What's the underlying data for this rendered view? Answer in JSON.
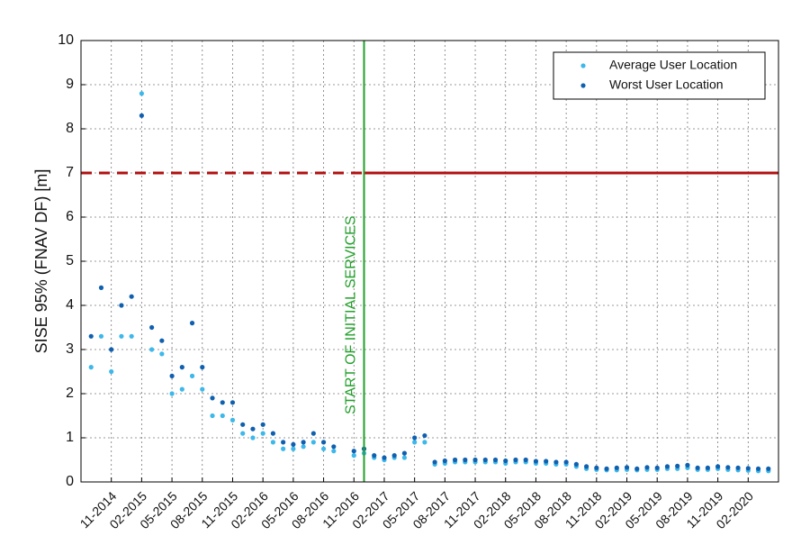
{
  "chart_data": {
    "type": "scatter",
    "ylabel": "SISE 95% (FNAV DF) [m]",
    "x": [
      "09-2014",
      "10-2014",
      "11-2014",
      "12-2014",
      "01-2015",
      "02-2015",
      "03-2015",
      "04-2015",
      "05-2015",
      "06-2015",
      "07-2015",
      "08-2015",
      "09-2015",
      "10-2015",
      "11-2015",
      "12-2015",
      "01-2016",
      "02-2016",
      "03-2016",
      "04-2016",
      "05-2016",
      "06-2016",
      "07-2016",
      "08-2016",
      "09-2016",
      "10-2016",
      "11-2016",
      "12-2016",
      "01-2017",
      "02-2017",
      "03-2017",
      "04-2017",
      "05-2017",
      "06-2017",
      "07-2017",
      "08-2017",
      "09-2017",
      "10-2017",
      "11-2017",
      "12-2017",
      "01-2018",
      "02-2018",
      "03-2018",
      "04-2018",
      "05-2018",
      "06-2018",
      "07-2018",
      "08-2018",
      "09-2018",
      "10-2018",
      "11-2018",
      "12-2018",
      "01-2019",
      "02-2019",
      "03-2019",
      "04-2019",
      "05-2019",
      "06-2019",
      "07-2019",
      "08-2019",
      "09-2019",
      "10-2019",
      "11-2019",
      "12-2019",
      "01-2020",
      "02-2020",
      "03-2020",
      "04-2020"
    ],
    "series": [
      {
        "name": "Average User Location",
        "color": "#3cb8ea",
        "values": [
          2.6,
          3.3,
          2.5,
          3.3,
          3.3,
          8.8,
          3.0,
          2.9,
          2.0,
          2.1,
          2.4,
          2.1,
          1.5,
          1.5,
          1.4,
          1.1,
          1.0,
          1.1,
          0.9,
          0.75,
          0.75,
          0.8,
          0.9,
          0.75,
          0.7,
          null,
          0.6,
          0.65,
          0.55,
          0.5,
          0.55,
          0.55,
          0.9,
          0.9,
          0.4,
          0.42,
          0.45,
          0.45,
          0.45,
          0.45,
          0.45,
          0.42,
          0.45,
          0.45,
          0.42,
          0.42,
          0.4,
          0.4,
          0.35,
          0.3,
          0.28,
          0.27,
          0.27,
          0.28,
          0.27,
          0.28,
          0.28,
          0.3,
          0.3,
          0.32,
          0.28,
          0.28,
          0.3,
          0.28,
          0.27,
          0.26,
          0.25,
          0.25
        ]
      },
      {
        "name": "Worst User Location",
        "color": "#1060b0",
        "values": [
          3.3,
          4.4,
          3.0,
          4.0,
          4.2,
          8.3,
          3.5,
          3.2,
          2.4,
          2.6,
          3.6,
          2.6,
          1.9,
          1.8,
          1.8,
          1.3,
          1.2,
          1.3,
          1.1,
          0.9,
          0.85,
          0.9,
          1.1,
          0.9,
          0.8,
          null,
          0.7,
          0.75,
          0.6,
          0.55,
          0.6,
          0.65,
          1.0,
          1.05,
          0.45,
          0.48,
          0.5,
          0.5,
          0.5,
          0.5,
          0.5,
          0.48,
          0.5,
          0.5,
          0.47,
          0.47,
          0.45,
          0.45,
          0.4,
          0.35,
          0.32,
          0.3,
          0.32,
          0.33,
          0.3,
          0.33,
          0.32,
          0.35,
          0.36,
          0.38,
          0.32,
          0.32,
          0.35,
          0.33,
          0.32,
          0.31,
          0.3,
          0.3
        ]
      }
    ],
    "xlim": [
      "08-2014",
      "05-2020"
    ],
    "xticks": [
      "11-2014",
      "02-2015",
      "05-2015",
      "08-2015",
      "11-2015",
      "02-2016",
      "05-2016",
      "08-2016",
      "11-2016",
      "02-2017",
      "05-2017",
      "08-2017",
      "11-2017",
      "02-2018",
      "05-2018",
      "08-2018",
      "11-2018",
      "02-2019",
      "05-2019",
      "08-2019",
      "11-2019",
      "02-2020"
    ],
    "ylim": [
      0,
      10
    ],
    "yticks": [
      0,
      1,
      2,
      3,
      4,
      5,
      6,
      7,
      8,
      9,
      10
    ],
    "grid": true,
    "legend": "upper right",
    "threshold": {
      "value": 7,
      "color": "#b01010"
    },
    "event": {
      "x": "12-2016",
      "label": "START OF INITIAL SERVICES",
      "color": "#22a02a"
    }
  }
}
